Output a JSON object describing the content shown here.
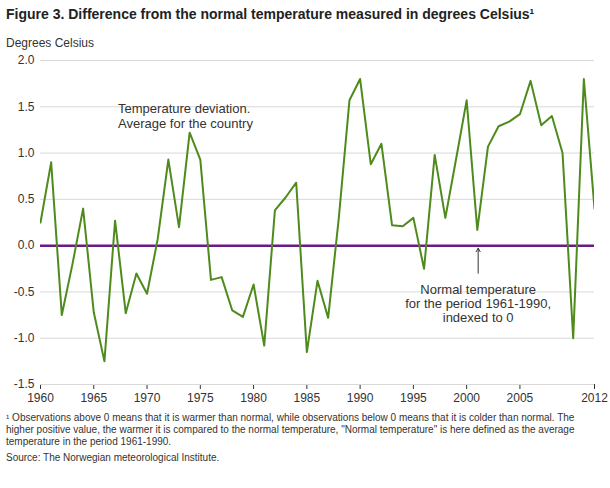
{
  "chart_data": {
    "type": "line",
    "title": "Figure 3. Difference from the normal temperature measured in degrees Celsius¹",
    "y_label": "Degrees Celsius",
    "x": [
      1960,
      1961,
      1962,
      1963,
      1964,
      1965,
      1966,
      1967,
      1968,
      1969,
      1970,
      1971,
      1972,
      1973,
      1974,
      1975,
      1976,
      1977,
      1978,
      1979,
      1980,
      1981,
      1982,
      1983,
      1984,
      1985,
      1986,
      1987,
      1988,
      1989,
      1990,
      1991,
      1992,
      1993,
      1994,
      1995,
      1996,
      1997,
      1998,
      1999,
      2000,
      2001,
      2002,
      2003,
      2004,
      2005,
      2006,
      2007,
      2008,
      2009,
      2010,
      2011,
      2012
    ],
    "values": [
      0.25,
      0.9,
      -0.75,
      -0.2,
      0.4,
      -0.72,
      -1.25,
      0.27,
      -0.73,
      -0.3,
      -0.52,
      0.07,
      0.93,
      0.2,
      1.22,
      0.93,
      -0.37,
      -0.34,
      -0.7,
      -0.77,
      -0.42,
      -1.08,
      0.38,
      0.52,
      0.68,
      -1.15,
      -0.38,
      -0.78,
      0.3,
      1.57,
      1.8,
      0.88,
      1.1,
      0.22,
      0.21,
      0.3,
      -0.25,
      0.98,
      0.3,
      0.93,
      1.57,
      0.17,
      1.07,
      1.29,
      1.34,
      1.42,
      1.78,
      1.3,
      1.4,
      1.0,
      -1.0,
      1.8,
      0.4
    ],
    "color": "#4e8b1c",
    "xlim": [
      1960,
      2012
    ],
    "xticks": [
      1960,
      1965,
      1970,
      1975,
      1980,
      1985,
      1990,
      1995,
      2000,
      2005,
      2012
    ],
    "ylim": [
      -1.5,
      2.0
    ],
    "yticks": [
      -1.5,
      {
        "value": -1,
        "label": "-1.0"
      },
      -0.5,
      {
        "value": 0,
        "label": "0.0"
      },
      0.5,
      {
        "value": 1,
        "label": "1.0"
      },
      1.5,
      {
        "value": 2,
        "label": "2.0"
      }
    ],
    "grid": true,
    "reference_line": {
      "value": 0,
      "color": "#6a1b8a"
    },
    "annotations": [
      "Temperature deviation.\nAverage for the country",
      "Normal temperature\nfor the period 1961-1990,\nindexed to 0"
    ],
    "footnote": "¹ Observations above 0 means that it is warmer than normal, while observations below 0 means that it is colder than normal. The higher positive value, the warmer it is compared to the normal temperature, \"Normal temperature\" is here defined as the average temperature in the period 1961-1990.",
    "source": "Source: The Norwegian meteorological Institute."
  }
}
